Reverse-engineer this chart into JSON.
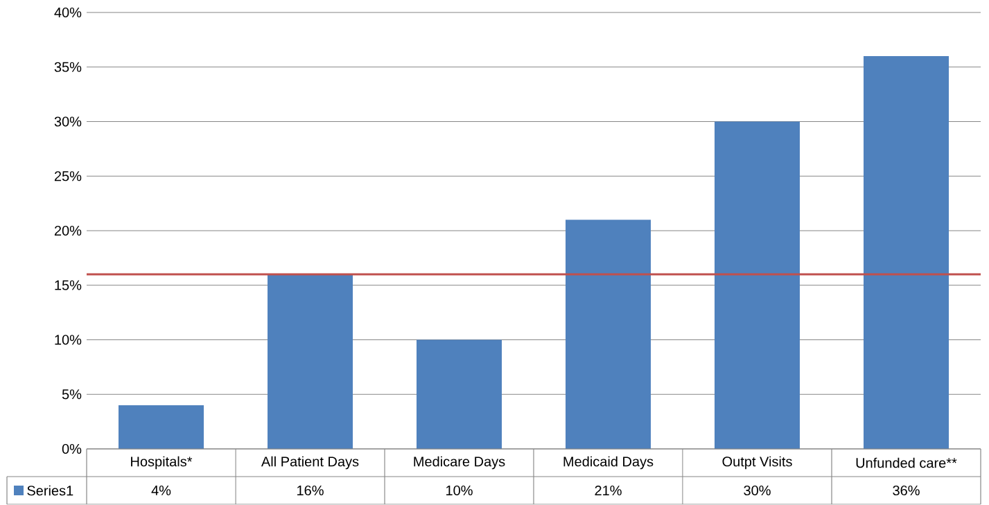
{
  "chart_data": {
    "type": "bar",
    "categories": [
      "Hospitals*",
      "All Patient Days",
      "Medicare Days",
      "Medicaid Days",
      "Outpt Visits",
      "Unfunded care**"
    ],
    "series": [
      {
        "name": "Series1",
        "color": "#4f81bd",
        "values": [
          4,
          16,
          10,
          21,
          30,
          36
        ],
        "value_labels": [
          "4%",
          "16%",
          "10%",
          "21%",
          "30%",
          "36%"
        ]
      }
    ],
    "ylim": [
      0,
      40
    ],
    "yticks": [
      {
        "value": 0,
        "label": "0%"
      },
      {
        "value": 5,
        "label": "5%"
      },
      {
        "value": 10,
        "label": "10%"
      },
      {
        "value": 15,
        "label": "15%"
      },
      {
        "value": 20,
        "label": "20%"
      },
      {
        "value": 25,
        "label": "25%"
      },
      {
        "value": 30,
        "label": "30%"
      },
      {
        "value": 35,
        "label": "35%"
      },
      {
        "value": 40,
        "label": "40%"
      }
    ],
    "grid": "y",
    "legend": "bottom",
    "ref_lines": [
      {
        "axis": "y",
        "value": 16,
        "color": "#c0504d"
      }
    ]
  }
}
